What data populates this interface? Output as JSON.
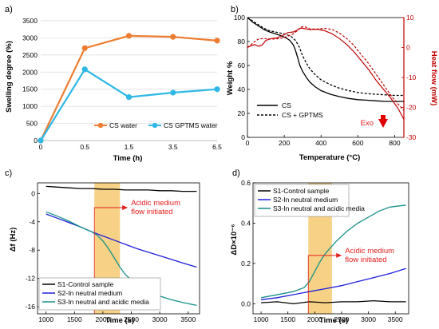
{
  "chart_data": [
    {
      "id": "a",
      "type": "line",
      "panel_label": "a)",
      "xlabel": "Time (h)",
      "ylabel": "Swelling degree (%)",
      "x_ticks": [
        "0",
        "0.5",
        "1.5",
        "3.5",
        "6.5"
      ],
      "ylim": [
        0,
        3500
      ],
      "y_ticks": [
        "0",
        "500",
        "1000",
        "1500",
        "2000",
        "2500",
        "3000",
        "3500"
      ],
      "series": [
        {
          "name": "CS water",
          "color": "#ed7d31",
          "values": [
            0,
            2700,
            3060,
            3030,
            2920
          ]
        },
        {
          "name": "CS GPTMS water",
          "color": "#2eb8e6",
          "values": [
            0,
            2080,
            1270,
            1400,
            1500
          ]
        }
      ],
      "legend": "bottom-right"
    },
    {
      "id": "b",
      "type": "line",
      "panel_label": "b)",
      "xlabel": "Temperature (°C)",
      "ylabel": "Weight %",
      "y2label": "Heat flow (mW)",
      "x_ticks": [
        "0",
        "200",
        "400",
        "600",
        "800"
      ],
      "xlim": [
        0,
        850
      ],
      "ylim": [
        0,
        100
      ],
      "y_ticks": [
        "0",
        "20",
        "40",
        "60",
        "80",
        "100"
      ],
      "y2lim": [
        -30,
        10
      ],
      "y2_ticks": [
        "-30",
        "-20",
        "-10",
        "0",
        "10"
      ],
      "weight_series": [
        {
          "name": "CS",
          "color": "#000000",
          "dash": false,
          "x": [
            0,
            30,
            60,
            90,
            120,
            150,
            180,
            210,
            230,
            250,
            260,
            270,
            285,
            300,
            320,
            340,
            370,
            400,
            450,
            500,
            550,
            600,
            650,
            700,
            750,
            800,
            850
          ],
          "y": [
            100,
            96,
            93,
            90,
            88,
            86.5,
            85,
            83,
            81,
            77,
            73,
            68,
            60,
            55,
            50,
            46,
            42,
            39,
            36,
            34,
            32.5,
            31.5,
            31,
            30.5,
            30,
            30,
            30
          ]
        },
        {
          "name": "CS + GPTMS",
          "color": "#000000",
          "dash": true,
          "x": [
            0,
            30,
            60,
            90,
            120,
            150,
            180,
            210,
            240,
            260,
            280,
            300,
            320,
            340,
            370,
            400,
            450,
            500,
            550,
            600,
            650,
            700,
            750,
            800,
            850
          ],
          "y": [
            100,
            97,
            94,
            91,
            89,
            88,
            87,
            86,
            84,
            81,
            76,
            68,
            62,
            57,
            52,
            48,
            44,
            41,
            39,
            37.5,
            36.5,
            36,
            35.5,
            35,
            35
          ]
        }
      ],
      "heat_series": [
        {
          "color": "#c00000",
          "dash": false,
          "x": [
            0,
            20,
            40,
            60,
            80,
            100,
            130,
            160,
            190,
            220,
            250,
            270,
            290,
            310,
            340,
            380,
            420,
            460,
            500,
            540,
            580,
            620,
            660,
            700,
            740,
            780,
            820,
            850
          ],
          "y": [
            0,
            0.6,
            1.0,
            0.4,
            0.8,
            2.4,
            3.0,
            3.2,
            4.0,
            5.0,
            5.2,
            5.8,
            6.5,
            6.3,
            6.0,
            6.1,
            5.6,
            4.6,
            3.0,
            1.0,
            -1.5,
            -4.5,
            -7.5,
            -11,
            -14,
            -17,
            -20.5,
            -24
          ]
        },
        {
          "color": "#c00000",
          "dash": true,
          "x": [
            0,
            20,
            40,
            60,
            80,
            100,
            130,
            160,
            190,
            220,
            250,
            270,
            290,
            310,
            340,
            380,
            420,
            460,
            500,
            540,
            580,
            620,
            660,
            700,
            740,
            780,
            820,
            850
          ],
          "y": [
            0,
            1.0,
            2.0,
            2.8,
            3.0,
            3.0,
            2.8,
            2.9,
            3.2,
            3.8,
            4.6,
            5.6,
            6.8,
            7.0,
            6.2,
            6.2,
            6.4,
            6.0,
            4.8,
            3.0,
            0.6,
            -2.5,
            -5.5,
            -9,
            -12.5,
            -16,
            -19,
            -21
          ]
        }
      ],
      "annotations": [
        {
          "text": "Exo",
          "x": 760,
          "y2": -24
        }
      ],
      "legend": "bottom-left"
    },
    {
      "id": "c",
      "type": "line",
      "panel_label": "c)",
      "xlabel": "Time (s)",
      "ylabel": "Δf (Hz)",
      "xlim": [
        850,
        3700
      ],
      "x_ticks": [
        "1000",
        "1500",
        "2000",
        "2500",
        "3000",
        "3500"
      ],
      "ylim": [
        -17,
        1.5
      ],
      "y_ticks": [
        "-16",
        "-12",
        "-8",
        "-4",
        "0"
      ],
      "highlight": {
        "x0": 1850,
        "x1": 2300
      },
      "annotation": {
        "text_lines": [
          "Acidic medium",
          "flow initiated"
        ],
        "x": 1850,
        "y": -2
      },
      "series": [
        {
          "name": "S1-Control sample",
          "color": "#000000",
          "x": [
            1000,
            1200,
            1400,
            1600,
            1800,
            2000,
            2200,
            2400,
            2600,
            2800,
            3000,
            3200,
            3400,
            3650
          ],
          "y": [
            1.0,
            0.9,
            0.8,
            0.7,
            0.7,
            0.6,
            0.6,
            0.5,
            0.5,
            0.5,
            0.4,
            0.4,
            0.3,
            0.3
          ]
        },
        {
          "name": "S2-In neutral medium",
          "color": "#1f1fdc",
          "x": [
            1000,
            1200,
            1400,
            1600,
            1800,
            2000,
            2200,
            2400,
            2600,
            2800,
            3000,
            3200,
            3400,
            3650
          ],
          "y": [
            -2.9,
            -3.5,
            -4.1,
            -4.7,
            -5.4,
            -6.0,
            -6.6,
            -7.2,
            -7.8,
            -8.3,
            -8.8,
            -9.3,
            -9.8,
            -10.4
          ]
        },
        {
          "name": "S3-In neutral and acidic media",
          "color": "#17918a",
          "x": [
            1000,
            1200,
            1400,
            1600,
            1800,
            1900,
            2000,
            2100,
            2200,
            2300,
            2400,
            2600,
            2800,
            3000,
            3200,
            3400,
            3650
          ],
          "y": [
            -2.6,
            -3.2,
            -3.9,
            -4.7,
            -5.4,
            -5.9,
            -6.7,
            -7.8,
            -9.1,
            -10.4,
            -11.5,
            -12.9,
            -13.8,
            -14.5,
            -15.0,
            -15.4,
            -15.8
          ]
        }
      ],
      "legend": "bottom-left"
    },
    {
      "id": "d",
      "type": "line",
      "panel_label": "d)",
      "xlabel": "Time (s)",
      "ylabel": "ΔD×10⁻⁶",
      "xlim": [
        850,
        3750
      ],
      "x_ticks": [
        "1000",
        "1500",
        "2000",
        "2500",
        "3000",
        "3500"
      ],
      "ylim": [
        -0.05,
        0.6
      ],
      "y_ticks": [
        "0.0",
        "0.2",
        "0.4",
        "0.6"
      ],
      "highlight": {
        "x0": 1880,
        "x1": 2320
      },
      "annotation": {
        "text_lines": [
          "Acidic medium",
          "flow initiated"
        ],
        "x": 1880,
        "y": 0.24
      },
      "series": [
        {
          "name": "S1-Control sample",
          "color": "#000000",
          "x": [
            1000,
            1300,
            1600,
            1900,
            2200,
            2500,
            2800,
            3100,
            3400,
            3700
          ],
          "y": [
            0.005,
            0.01,
            0.0,
            0.01,
            0.005,
            0.01,
            0.01,
            0.015,
            0.01,
            0.01
          ]
        },
        {
          "name": "S2-In neutral medium",
          "color": "#1f1fdc",
          "x": [
            1000,
            1300,
            1600,
            1900,
            2200,
            2500,
            2800,
            3100,
            3400,
            3700
          ],
          "y": [
            0.02,
            0.03,
            0.045,
            0.06,
            0.075,
            0.09,
            0.11,
            0.13,
            0.15,
            0.175
          ]
        },
        {
          "name": "S3-In neutral and acidic media",
          "color": "#17918a",
          "x": [
            1000,
            1200,
            1400,
            1600,
            1800,
            1900,
            2000,
            2100,
            2200,
            2300,
            2400,
            2600,
            2800,
            3000,
            3200,
            3400,
            3700
          ],
          "y": [
            0.03,
            0.04,
            0.05,
            0.06,
            0.08,
            0.11,
            0.16,
            0.21,
            0.25,
            0.28,
            0.31,
            0.36,
            0.4,
            0.43,
            0.46,
            0.48,
            0.49
          ]
        }
      ],
      "legend": "top-left"
    }
  ]
}
